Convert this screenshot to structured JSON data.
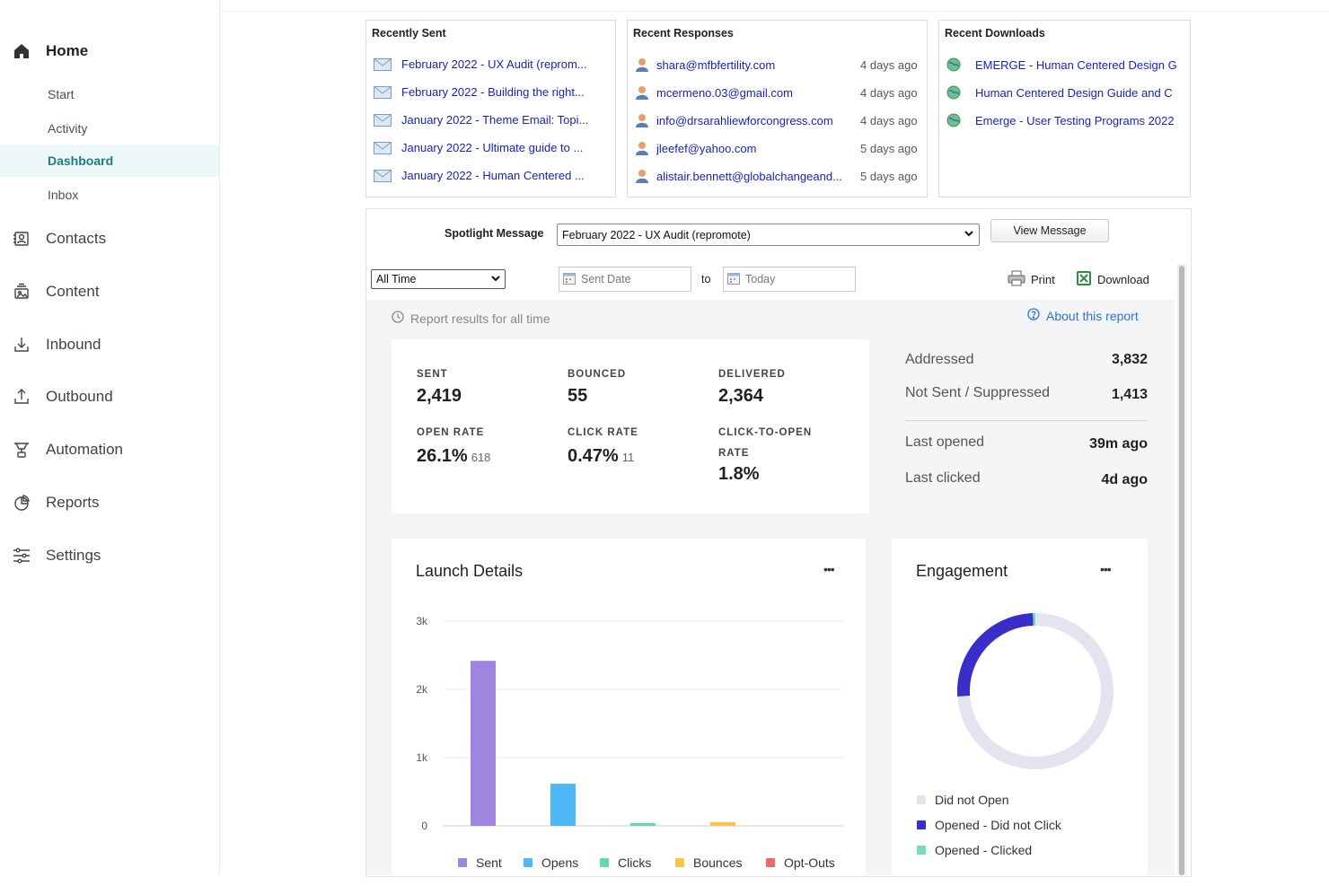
{
  "sidebar": {
    "home": "Home",
    "sub": [
      "Start",
      "Activity",
      "Dashboard",
      "Inbox"
    ],
    "items": [
      {
        "label": "Contacts",
        "icon": "contacts-icon"
      },
      {
        "label": "Content",
        "icon": "content-icon"
      },
      {
        "label": "Inbound",
        "icon": "inbound-icon"
      },
      {
        "label": "Outbound",
        "icon": "outbound-icon"
      },
      {
        "label": "Automation",
        "icon": "automation-icon"
      },
      {
        "label": "Reports",
        "icon": "reports-icon"
      },
      {
        "label": "Settings",
        "icon": "settings-icon"
      }
    ]
  },
  "recent_sent": {
    "title": "Recently Sent",
    "items": [
      "February 2022 - UX Audit (reprom...",
      "February 2022 - Building the right...",
      "January 2022 - Theme Email: Topi...",
      "January 2022 - Ultimate guide to ...",
      "January 2022 - Human Centered ..."
    ]
  },
  "recent_responses": {
    "title": "Recent Responses",
    "items": [
      {
        "email": "shara@mfbfertility.com",
        "when": "4 days ago"
      },
      {
        "email": "mcermeno.03@gmail.com",
        "when": "4 days ago"
      },
      {
        "email": "info@drsarahliewforcongress.com",
        "when": "4 days ago"
      },
      {
        "email": "jleefef@yahoo.com",
        "when": "5 days ago"
      },
      {
        "email": "alistair.bennett@globalchangeand...",
        "when": "5 days ago"
      }
    ]
  },
  "recent_downloads": {
    "title": "Recent Downloads",
    "items": [
      "EMERGE - Human Centered Design G",
      "Human Centered Design Guide and C",
      "Emerge - User Testing Programs 2022"
    ]
  },
  "spotlight": {
    "label": "Spotlight Message",
    "selected": "February 2022 - UX Audit (repromote)",
    "view_button": "View Message"
  },
  "filters": {
    "range": "All Time",
    "start_placeholder": "Sent Date",
    "to": "to",
    "end_placeholder": "Today",
    "print": "Print",
    "download": "Download"
  },
  "report": {
    "results_text": "Report results for all time",
    "about": "About this report"
  },
  "metrics": {
    "sent_label": "SENT",
    "sent": "2,419",
    "bounced_label": "BOUNCED",
    "bounced": "55",
    "delivered_label": "DELIVERED",
    "delivered": "2,364",
    "open_rate_label": "OPEN RATE",
    "open_rate": "26.1%",
    "opens": "618",
    "click_rate_label": "CLICK RATE",
    "click_rate": "0.47%",
    "clicks": "11",
    "cto_label_1": "CLICK-TO-OPEN",
    "cto_label_2": "RATE",
    "cto": "1.8%"
  },
  "summary": {
    "addressed_label": "Addressed",
    "addressed": "3,832",
    "not_sent_label": "Not Sent / Suppressed",
    "not_sent": "1,413",
    "last_opened_label": "Last opened",
    "last_opened": "39m ago",
    "last_clicked_label": "Last clicked",
    "last_clicked": "4d ago"
  },
  "launch_chart": {
    "title": "Launch Details",
    "menu": "•••"
  },
  "engagement": {
    "title": "Engagement",
    "menu": "•••"
  },
  "chart_data": [
    {
      "type": "bar",
      "title": "Launch Details",
      "categories": [
        "Sent",
        "Opens",
        "Clicks",
        "Bounces",
        "Opt-Outs"
      ],
      "values": [
        2419,
        618,
        11,
        55,
        0
      ],
      "colors": [
        "#a085e0",
        "#4db8f5",
        "#5fdbb4",
        "#f7c548",
        "#ee6a6a"
      ],
      "yticks": [
        "0",
        "1k",
        "2k",
        "3k"
      ],
      "ylim": [
        0,
        3000
      ],
      "legend": "bottom",
      "grid": true
    },
    {
      "type": "pie",
      "title": "Engagement",
      "categories": [
        "Did not Open",
        "Opened - Did not Click",
        "Opened - Clicked"
      ],
      "values": [
        73.9,
        25.6,
        0.5
      ],
      "colors": [
        "#e3e4f0",
        "#3a2ec8",
        "#6fe0b8"
      ],
      "legend": "bottom-left"
    }
  ]
}
